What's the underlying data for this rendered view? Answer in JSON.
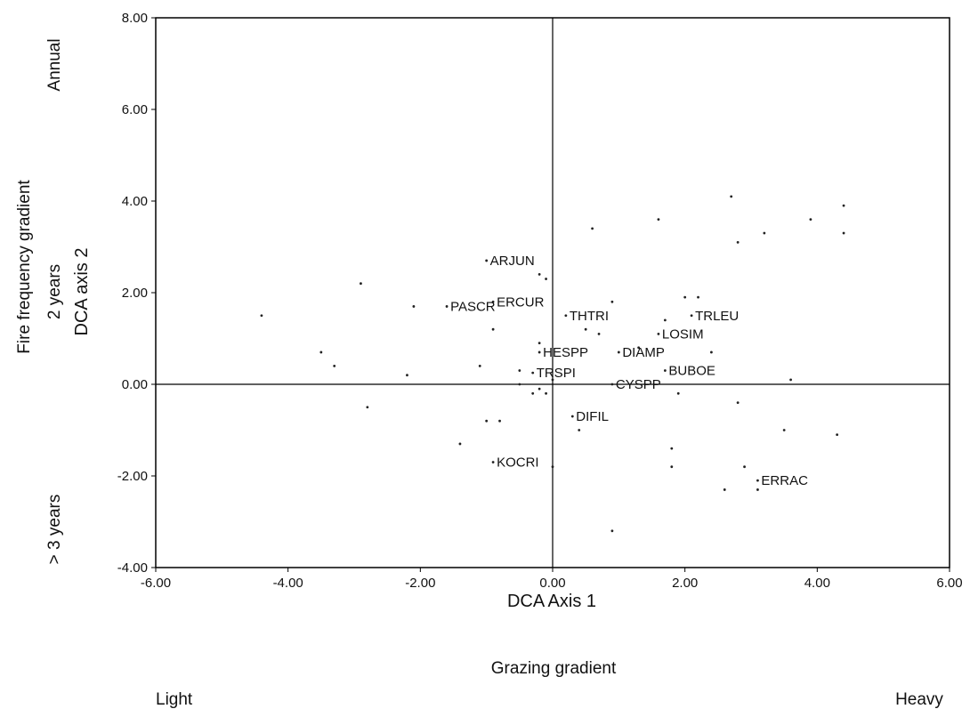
{
  "chart_data": {
    "type": "scatter",
    "title": "",
    "xlabel": "DCA Axis 1",
    "ylabel": "DCA axis 2",
    "xlim": [
      -6,
      6
    ],
    "ylim": [
      -4,
      8
    ],
    "xticks": [
      "-6.00",
      "-4.00",
      "-2.00",
      "0.00",
      "2.00",
      "4.00",
      "6.00"
    ],
    "yticks": [
      "-4.00",
      "-2.00",
      "0.00",
      "2.00",
      "4.00",
      "6.00",
      "8.00"
    ],
    "reference_lines": {
      "x": 0,
      "y": 0
    },
    "grid": false,
    "x_gradient": {
      "title": "Grazing gradient",
      "low": "Light",
      "high": "Heavy"
    },
    "y_gradient": {
      "title": "Fire frequency gradient",
      "low": "> 3 years",
      "mid": "2 years",
      "high": "Annual"
    },
    "labeled_points": [
      {
        "label": "ARJUN",
        "x": -1.0,
        "y": 2.7
      },
      {
        "label": "ERCUR",
        "x": -0.9,
        "y": 1.8
      },
      {
        "label": "PASCR",
        "x": -1.6,
        "y": 1.7
      },
      {
        "label": "THTRI",
        "x": 0.2,
        "y": 1.5
      },
      {
        "label": "TRLEU",
        "x": 2.1,
        "y": 1.5
      },
      {
        "label": "LOSIM",
        "x": 1.6,
        "y": 1.1
      },
      {
        "label": "HESPP",
        "x": -0.2,
        "y": 0.7
      },
      {
        "label": "DIAMP",
        "x": 1.0,
        "y": 0.7
      },
      {
        "label": "BUBOE",
        "x": 1.7,
        "y": 0.3
      },
      {
        "label": "TRSPI",
        "x": -0.3,
        "y": 0.25
      },
      {
        "label": "CYSPP",
        "x": 0.9,
        "y": 0.0
      },
      {
        "label": "DIFIL",
        "x": 0.3,
        "y": -0.7
      },
      {
        "label": "KOCRI",
        "x": -0.9,
        "y": -1.7
      },
      {
        "label": "ERRAC",
        "x": 3.1,
        "y": -2.1
      }
    ],
    "points": [
      {
        "x": -4.4,
        "y": 1.5
      },
      {
        "x": -3.5,
        "y": 0.7
      },
      {
        "x": -3.3,
        "y": 0.4
      },
      {
        "x": -2.9,
        "y": 2.2
      },
      {
        "x": -2.8,
        "y": -0.5
      },
      {
        "x": -2.2,
        "y": 0.2
      },
      {
        "x": -2.1,
        "y": 1.7
      },
      {
        "x": -1.4,
        "y": -1.3
      },
      {
        "x": -1.1,
        "y": 0.4
      },
      {
        "x": -1.0,
        "y": -0.8
      },
      {
        "x": -0.9,
        "y": 1.2
      },
      {
        "x": -0.8,
        "y": -0.8
      },
      {
        "x": -0.5,
        "y": 0.3
      },
      {
        "x": -0.5,
        "y": 0.0
      },
      {
        "x": -0.3,
        "y": -0.2
      },
      {
        "x": -0.2,
        "y": -0.1
      },
      {
        "x": -0.2,
        "y": 0.9
      },
      {
        "x": -0.2,
        "y": 2.4
      },
      {
        "x": -0.1,
        "y": 2.3
      },
      {
        "x": -0.1,
        "y": -0.2
      },
      {
        "x": 0.0,
        "y": 0.1
      },
      {
        "x": 0.0,
        "y": -1.8
      },
      {
        "x": 0.4,
        "y": -1.0
      },
      {
        "x": 0.5,
        "y": 1.2
      },
      {
        "x": 0.6,
        "y": 3.4
      },
      {
        "x": 0.7,
        "y": 1.1
      },
      {
        "x": 0.9,
        "y": 1.8
      },
      {
        "x": 0.9,
        "y": -3.2
      },
      {
        "x": 1.3,
        "y": 0.8
      },
      {
        "x": 1.6,
        "y": 3.6
      },
      {
        "x": 1.7,
        "y": 1.4
      },
      {
        "x": 1.8,
        "y": -1.4
      },
      {
        "x": 1.8,
        "y": -1.8
      },
      {
        "x": 1.9,
        "y": -0.2
      },
      {
        "x": 2.0,
        "y": 1.9
      },
      {
        "x": 2.2,
        "y": 1.9
      },
      {
        "x": 2.4,
        "y": 0.7
      },
      {
        "x": 2.6,
        "y": -2.3
      },
      {
        "x": 2.7,
        "y": 4.1
      },
      {
        "x": 2.8,
        "y": 3.1
      },
      {
        "x": 2.8,
        "y": -0.4
      },
      {
        "x": 2.9,
        "y": -1.8
      },
      {
        "x": 3.1,
        "y": -2.3
      },
      {
        "x": 3.2,
        "y": 3.3
      },
      {
        "x": 3.5,
        "y": -1.0
      },
      {
        "x": 3.6,
        "y": 0.1
      },
      {
        "x": 3.9,
        "y": 3.6
      },
      {
        "x": 4.3,
        "y": -1.1
      },
      {
        "x": 4.4,
        "y": 3.9
      },
      {
        "x": 4.4,
        "y": 3.3
      }
    ]
  }
}
